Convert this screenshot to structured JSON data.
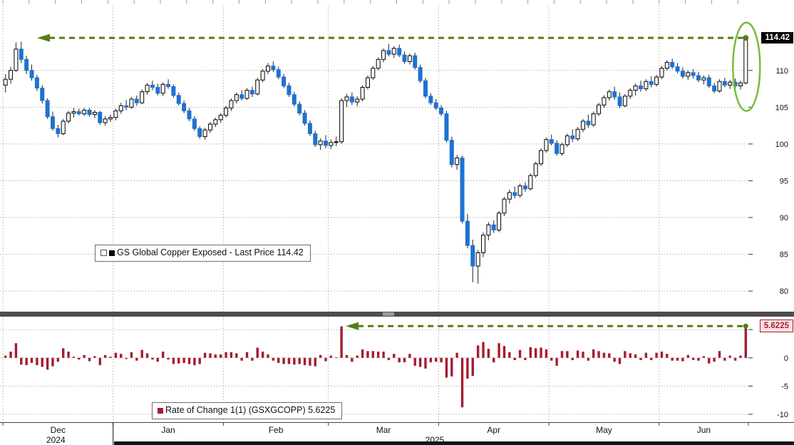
{
  "ui": {
    "panel1_legend": "GS Global Copper Exposed - Last Price 114.42",
    "panel2_legend": "Rate of Change 1(1) (GSXGCOPP) 5.6225",
    "price_badge": "114.42",
    "roc_badge": "5.6225"
  },
  "colors": {
    "candle_up_fill": "#ffffff",
    "candle_up_stroke": "#000000",
    "candle_down": "#1d72d2",
    "wick": "#222222",
    "roc_bar": "#a51c30",
    "annotation_green": "#567d17",
    "ellipse_green": "#79bb3a",
    "grid": "#9a9a9a",
    "separator": "#4d4d4d",
    "price_badge_bg": "#000000",
    "price_badge_text": "#ffffff",
    "roc_badge_bg": "#f7e2e4",
    "roc_badge_text": "#a51c30",
    "axis_text": "#111111"
  },
  "chart_data": [
    {
      "type": "candlestick",
      "title": "GS Global Copper Exposed - Last Price",
      "last_price": 114.42,
      "ylim": [
        77.2,
        118.8
      ],
      "yticks": [
        110,
        105,
        100,
        95,
        90,
        85,
        80
      ],
      "x_months": [
        "Dec",
        "Jan",
        "Feb",
        "Mar",
        "Apr",
        "May",
        "Jun"
      ],
      "x_years": [
        "2024",
        "2025"
      ],
      "month_start_indices": [
        0,
        21,
        42,
        62,
        83,
        104,
        125
      ],
      "year_divider_index": 21,
      "annotations": {
        "hline_value": 114.42,
        "hline_arrow": "left",
        "ellipse_last_candles": true
      },
      "candles": [
        [
          108.0,
          109.5,
          107.0,
          108.8
        ],
        [
          108.8,
          110.5,
          108.2,
          110.0
        ],
        [
          110.0,
          113.8,
          109.8,
          112.9
        ],
        [
          112.9,
          113.9,
          111.0,
          111.5
        ],
        [
          111.5,
          112.0,
          109.5,
          110.0
        ],
        [
          110.0,
          110.8,
          108.6,
          109.0
        ],
        [
          109.0,
          109.4,
          107.2,
          107.6
        ],
        [
          107.6,
          108.0,
          105.5,
          105.9
        ],
        [
          105.9,
          106.2,
          103.4,
          103.7
        ],
        [
          103.7,
          104.4,
          101.8,
          102.1
        ],
        [
          102.1,
          102.6,
          100.9,
          101.4
        ],
        [
          101.4,
          103.4,
          101.2,
          103.1
        ],
        [
          103.1,
          104.5,
          102.8,
          104.2
        ],
        [
          104.2,
          104.9,
          103.6,
          104.4
        ],
        [
          104.4,
          104.8,
          103.9,
          104.1
        ],
        [
          104.1,
          104.9,
          103.8,
          104.6
        ],
        [
          104.6,
          104.9,
          103.7,
          104.0
        ],
        [
          104.0,
          104.6,
          103.5,
          104.3
        ],
        [
          104.3,
          104.5,
          102.6,
          102.9
        ],
        [
          102.9,
          103.8,
          102.5,
          103.4
        ],
        [
          103.4,
          104.0,
          103.0,
          103.6
        ],
        [
          103.6,
          104.8,
          103.2,
          104.5
        ],
        [
          104.5,
          105.6,
          104.1,
          105.2
        ],
        [
          105.2,
          106.0,
          104.6,
          105.0
        ],
        [
          105.0,
          106.4,
          104.8,
          106.1
        ],
        [
          106.1,
          106.6,
          105.2,
          105.6
        ],
        [
          105.6,
          107.4,
          105.4,
          107.1
        ],
        [
          107.1,
          108.3,
          106.7,
          108.0
        ],
        [
          108.0,
          108.6,
          107.3,
          107.7
        ],
        [
          107.7,
          108.2,
          106.6,
          106.9
        ],
        [
          106.9,
          108.4,
          106.5,
          108.1
        ],
        [
          108.1,
          108.8,
          107.5,
          107.8
        ],
        [
          107.8,
          108.1,
          106.3,
          106.6
        ],
        [
          106.6,
          107.0,
          105.2,
          105.5
        ],
        [
          105.5,
          105.9,
          104.2,
          104.5
        ],
        [
          104.5,
          104.9,
          103.1,
          103.4
        ],
        [
          103.4,
          103.8,
          101.8,
          102.1
        ],
        [
          102.1,
          102.4,
          100.7,
          101.0
        ],
        [
          101.0,
          102.2,
          100.6,
          101.9
        ],
        [
          101.9,
          103.0,
          101.5,
          102.7
        ],
        [
          102.7,
          103.6,
          102.3,
          103.3
        ],
        [
          103.3,
          104.2,
          102.9,
          103.9
        ],
        [
          103.9,
          105.2,
          103.6,
          104.9
        ],
        [
          104.9,
          106.2,
          104.5,
          105.9
        ],
        [
          105.9,
          107.0,
          105.5,
          106.7
        ],
        [
          106.7,
          107.3,
          105.9,
          106.2
        ],
        [
          106.2,
          107.6,
          106.0,
          107.3
        ],
        [
          107.3,
          107.8,
          106.4,
          106.8
        ],
        [
          106.8,
          109.0,
          106.6,
          108.7
        ],
        [
          108.7,
          110.2,
          108.4,
          109.9
        ],
        [
          109.9,
          111.0,
          109.5,
          110.6
        ],
        [
          110.6,
          111.2,
          109.8,
          110.1
        ],
        [
          110.1,
          110.5,
          108.8,
          109.1
        ],
        [
          109.1,
          109.5,
          107.6,
          107.9
        ],
        [
          107.9,
          108.3,
          106.4,
          106.7
        ],
        [
          106.7,
          107.1,
          105.1,
          105.4
        ],
        [
          105.4,
          105.8,
          103.9,
          104.2
        ],
        [
          104.2,
          104.6,
          102.5,
          102.8
        ],
        [
          102.8,
          103.2,
          101.1,
          101.4
        ],
        [
          101.4,
          101.8,
          99.6,
          99.9
        ],
        [
          99.9,
          100.8,
          99.2,
          100.4
        ],
        [
          100.4,
          101.2,
          99.4,
          99.8
        ],
        [
          99.8,
          100.6,
          99.3,
          100.2
        ],
        [
          100.2,
          101.0,
          99.7,
          100.3
        ],
        [
          100.3,
          106.2,
          100.0,
          105.9
        ],
        [
          105.9,
          106.8,
          105.0,
          106.4
        ],
        [
          106.4,
          107.0,
          105.3,
          105.7
        ],
        [
          105.7,
          106.5,
          105.1,
          106.1
        ],
        [
          106.1,
          108.0,
          105.8,
          107.7
        ],
        [
          107.7,
          109.3,
          107.4,
          109.0
        ],
        [
          109.0,
          110.6,
          108.7,
          110.3
        ],
        [
          110.3,
          111.8,
          110.0,
          111.5
        ],
        [
          111.5,
          113.0,
          111.1,
          112.7
        ],
        [
          112.7,
          113.6,
          111.9,
          112.2
        ],
        [
          112.2,
          113.3,
          111.7,
          113.0
        ],
        [
          113.0,
          113.5,
          111.8,
          112.1
        ],
        [
          112.1,
          112.6,
          110.9,
          111.2
        ],
        [
          111.2,
          112.3,
          110.8,
          112.0
        ],
        [
          112.0,
          112.4,
          110.1,
          110.4
        ],
        [
          110.4,
          110.8,
          108.3,
          108.6
        ],
        [
          108.6,
          109.0,
          106.2,
          106.5
        ],
        [
          106.5,
          106.9,
          105.3,
          105.6
        ],
        [
          105.6,
          106.1,
          104.6,
          104.9
        ],
        [
          104.9,
          105.3,
          103.8,
          104.1
        ],
        [
          104.1,
          104.5,
          100.2,
          100.5
        ],
        [
          100.5,
          101.0,
          96.8,
          97.2
        ],
        [
          97.2,
          98.5,
          96.5,
          98.1
        ],
        [
          98.1,
          98.4,
          89.2,
          89.5
        ],
        [
          89.5,
          90.5,
          85.8,
          86.2
        ],
        [
          86.2,
          87.0,
          81.2,
          83.4
        ],
        [
          83.4,
          85.6,
          81.0,
          85.2
        ],
        [
          85.2,
          88.0,
          84.6,
          87.6
        ],
        [
          87.6,
          89.4,
          86.9,
          89.0
        ],
        [
          89.0,
          89.6,
          87.9,
          88.3
        ],
        [
          88.3,
          90.9,
          88.0,
          90.6
        ],
        [
          90.6,
          92.8,
          90.2,
          92.5
        ],
        [
          92.5,
          93.8,
          91.9,
          93.4
        ],
        [
          93.4,
          94.2,
          92.6,
          93.0
        ],
        [
          93.0,
          94.6,
          92.7,
          94.3
        ],
        [
          94.3,
          94.8,
          93.5,
          93.9
        ],
        [
          93.9,
          96.0,
          93.7,
          95.7
        ],
        [
          95.7,
          97.6,
          95.4,
          97.3
        ],
        [
          97.3,
          99.4,
          97.0,
          99.1
        ],
        [
          99.1,
          100.9,
          98.8,
          100.6
        ],
        [
          100.6,
          101.3,
          99.8,
          100.1
        ],
        [
          100.1,
          100.5,
          98.4,
          98.7
        ],
        [
          98.7,
          100.2,
          98.4,
          99.9
        ],
        [
          99.9,
          101.4,
          99.6,
          101.1
        ],
        [
          101.1,
          102.0,
          100.3,
          100.7
        ],
        [
          100.7,
          102.3,
          100.4,
          102.0
        ],
        [
          102.0,
          103.4,
          101.6,
          103.1
        ],
        [
          103.1,
          104.0,
          102.2,
          102.6
        ],
        [
          102.6,
          104.4,
          102.3,
          104.1
        ],
        [
          104.1,
          105.6,
          103.8,
          105.3
        ],
        [
          105.3,
          106.6,
          104.9,
          106.3
        ],
        [
          106.3,
          107.4,
          105.9,
          107.1
        ],
        [
          107.1,
          107.8,
          106.0,
          106.4
        ],
        [
          106.4,
          107.0,
          104.9,
          105.2
        ],
        [
          105.2,
          106.8,
          105.0,
          106.5
        ],
        [
          106.5,
          107.6,
          106.1,
          107.3
        ],
        [
          107.3,
          108.2,
          106.6,
          107.9
        ],
        [
          107.9,
          108.6,
          107.1,
          107.5
        ],
        [
          107.5,
          108.8,
          107.2,
          108.5
        ],
        [
          108.5,
          109.2,
          107.7,
          108.1
        ],
        [
          108.1,
          109.4,
          107.8,
          109.1
        ],
        [
          109.1,
          110.6,
          108.8,
          110.3
        ],
        [
          110.3,
          111.4,
          110.0,
          111.1
        ],
        [
          111.1,
          111.6,
          110.2,
          110.5
        ],
        [
          110.5,
          111.0,
          109.6,
          109.9
        ],
        [
          109.9,
          110.4,
          108.9,
          109.2
        ],
        [
          109.2,
          110.0,
          108.7,
          109.7
        ],
        [
          109.7,
          110.2,
          108.9,
          109.3
        ],
        [
          109.3,
          109.8,
          108.4,
          108.7
        ],
        [
          108.7,
          109.3,
          108.1,
          109.0
        ],
        [
          109.0,
          109.4,
          107.6,
          107.9
        ],
        [
          107.9,
          108.3,
          106.9,
          107.2
        ],
        [
          107.2,
          108.8,
          107.0,
          108.5
        ],
        [
          108.5,
          109.0,
          107.7,
          108.0
        ],
        [
          108.0,
          108.7,
          107.5,
          108.4
        ],
        [
          108.4,
          108.9,
          107.6,
          107.9
        ],
        [
          107.9,
          108.6,
          107.4,
          108.3
        ],
        [
          108.3,
          114.6,
          108.1,
          114.42
        ]
      ]
    },
    {
      "type": "bar",
      "title": "Rate of Change 1(1) (GSXGCOPP)",
      "last_value": 5.6225,
      "ylim": [
        -11.4,
        7.3
      ],
      "yticks": [
        5,
        0,
        -5,
        -10
      ],
      "annotations": {
        "hline_value": 5.6225,
        "hline_from_index": 64,
        "hline_arrow": "left"
      },
      "values": [
        0.4,
        1.1,
        2.6,
        -1.2,
        -1.3,
        -0.9,
        -1.3,
        -1.6,
        -2.1,
        -1.5,
        -0.7,
        1.7,
        1.1,
        0.2,
        -0.3,
        0.5,
        -0.6,
        0.3,
        -1.3,
        0.5,
        0.2,
        0.9,
        0.7,
        -0.2,
        1.0,
        -0.5,
        1.4,
        0.8,
        -0.3,
        -0.7,
        1.1,
        -0.3,
        -1.1,
        -1.0,
        -0.9,
        -1.1,
        -1.3,
        -1.1,
        0.9,
        0.8,
        0.6,
        0.6,
        1.0,
        1.0,
        0.8,
        -0.5,
        1.0,
        -0.5,
        1.8,
        1.1,
        0.6,
        -0.5,
        -0.9,
        -1.1,
        -1.1,
        -1.2,
        -1.1,
        -1.3,
        -1.4,
        -1.5,
        0.5,
        -0.6,
        0.4,
        0.1,
        5.58,
        0.5,
        -0.7,
        0.4,
        1.5,
        1.2,
        1.2,
        1.1,
        1.1,
        -0.4,
        0.7,
        -0.8,
        -0.8,
        0.7,
        -1.4,
        -1.6,
        -1.9,
        -0.8,
        -0.7,
        -0.8,
        -3.5,
        -3.3,
        0.9,
        -8.77,
        -3.7,
        -3.2,
        2.2,
        2.8,
        1.6,
        -0.8,
        2.6,
        2.1,
        1.0,
        -0.4,
        1.4,
        -0.4,
        1.9,
        1.7,
        1.8,
        1.5,
        -0.5,
        -1.4,
        1.2,
        1.2,
        -0.4,
        1.3,
        1.1,
        -0.5,
        1.5,
        1.2,
        0.9,
        0.8,
        -0.7,
        -1.1,
        1.2,
        0.8,
        0.6,
        -0.4,
        0.9,
        -0.4,
        0.9,
        1.1,
        0.7,
        -0.5,
        -0.5,
        -0.6,
        0.5,
        -0.4,
        -0.5,
        0.3,
        -1.0,
        -0.7,
        1.2,
        -0.5,
        0.4,
        -0.5,
        0.4,
        5.6225
      ]
    }
  ]
}
